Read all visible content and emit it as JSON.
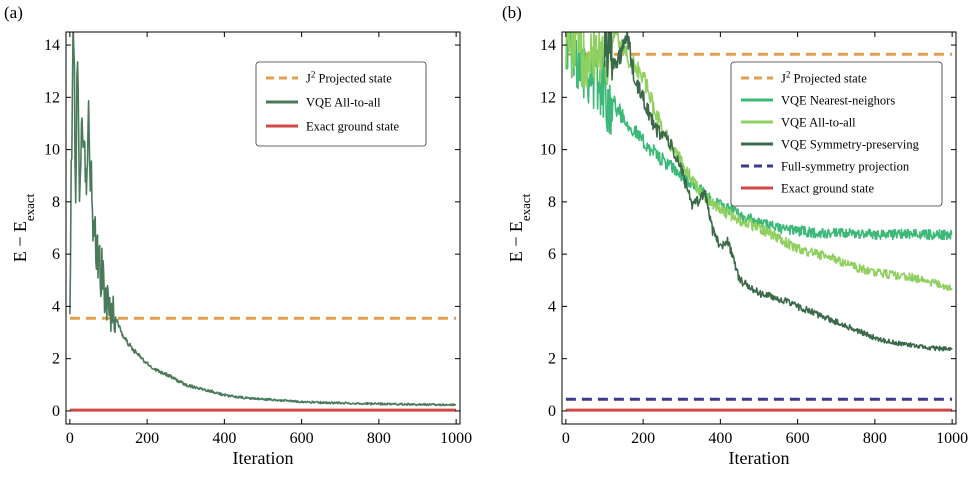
{
  "chart_data": [
    {
      "panel": "(a)",
      "type": "line",
      "title": "",
      "xlabel": "Iteration",
      "ylabel": "E − E",
      "ylabel_sub": "exact",
      "xlim": [
        -10,
        1010
      ],
      "ylim": [
        -0.5,
        14.5
      ],
      "xticks": [
        "0",
        "200",
        "400",
        "600",
        "800",
        "1000"
      ],
      "yticks": [
        "0",
        "2",
        "4",
        "6",
        "8",
        "10",
        "12",
        "14"
      ],
      "legend_position": "top-right",
      "series": [
        {
          "name": "J² Projected state",
          "legend_sup": "2",
          "legend_rest": " Projected state",
          "color": "#e0a050",
          "style": "dashed",
          "x": [
            0,
            1000
          ],
          "y": [
            3.55,
            3.55
          ]
        },
        {
          "name": "VQE All-to-all",
          "color": "#4a7a5a",
          "style": "solid",
          "noisy": true,
          "x": [
            0,
            5,
            10,
            15,
            20,
            25,
            30,
            40,
            50,
            60,
            70,
            80,
            90,
            100,
            120,
            140,
            160,
            180,
            200,
            220,
            250,
            280,
            300,
            340,
            380,
            400,
            450,
            500,
            550,
            600,
            650,
            700,
            800,
            900,
            1000
          ],
          "y": [
            3.5,
            11.0,
            14.5,
            9.0,
            13.0,
            7.0,
            12.5,
            9.0,
            11.0,
            6.5,
            6.0,
            5.5,
            4.5,
            4.0,
            3.5,
            2.8,
            2.4,
            2.1,
            1.8,
            1.6,
            1.4,
            1.15,
            1.0,
            0.85,
            0.7,
            0.6,
            0.5,
            0.45,
            0.4,
            0.35,
            0.32,
            0.3,
            0.27,
            0.25,
            0.23
          ]
        },
        {
          "name": "Exact ground state",
          "color": "#d04848",
          "style": "solid",
          "x": [
            0,
            1000
          ],
          "y": [
            0.03,
            0.03
          ]
        }
      ]
    },
    {
      "panel": "(b)",
      "type": "line",
      "title": "",
      "xlabel": "Iteration",
      "ylabel": "E − E",
      "ylabel_sub": "exact",
      "xlim": [
        -10,
        1010
      ],
      "ylim": [
        -0.5,
        14.5
      ],
      "xticks": [
        "0",
        "200",
        "400",
        "600",
        "800",
        "1000"
      ],
      "yticks": [
        "0",
        "2",
        "4",
        "6",
        "8",
        "10",
        "12",
        "14"
      ],
      "legend_position": "top-right",
      "series": [
        {
          "name": "J² Projected state",
          "legend_sup": "2",
          "legend_rest": " Projected state",
          "color": "#e0a050",
          "style": "dashed",
          "x": [
            0,
            1000
          ],
          "y": [
            13.65,
            13.65
          ]
        },
        {
          "name": "VQE Nearest-neighors",
          "color": "#3cb878",
          "style": "solid",
          "noisy": true,
          "x": [
            0,
            30,
            60,
            100,
            150,
            200,
            250,
            300,
            350,
            400,
            450,
            500,
            550,
            600,
            650,
            700,
            800,
            900,
            1000
          ],
          "y": [
            14.5,
            13.8,
            13.2,
            12.3,
            11.2,
            10.3,
            9.6,
            9.0,
            8.4,
            7.9,
            7.5,
            7.2,
            7.0,
            6.9,
            6.8,
            6.78,
            6.77,
            6.76,
            6.75
          ]
        },
        {
          "name": "VQE All-to-all",
          "color": "#90d060",
          "style": "solid",
          "noisy": true,
          "x": [
            0,
            40,
            80,
            100,
            130,
            160,
            200,
            230,
            260,
            300,
            350,
            400,
            450,
            500,
            550,
            600,
            650,
            700,
            750,
            800,
            850,
            900,
            950,
            1000
          ],
          "y": [
            14.5,
            13.7,
            14.2,
            13.6,
            14.5,
            13.5,
            12.8,
            11.5,
            10.5,
            9.5,
            8.3,
            7.7,
            7.3,
            7.0,
            6.6,
            6.2,
            6.0,
            5.8,
            5.5,
            5.3,
            5.2,
            5.1,
            4.9,
            4.7
          ]
        },
        {
          "name": "VQE Symmetry-preserving",
          "color": "#3a6a4a",
          "style": "solid",
          "noisy": true,
          "x": [
            100,
            130,
            160,
            180,
            200,
            230,
            260,
            300,
            330,
            360,
            380,
            400,
            420,
            450,
            500,
            550,
            600,
            650,
            700,
            750,
            800,
            850,
            900,
            950,
            1000
          ],
          "y": [
            14.5,
            13.2,
            14.3,
            12.5,
            12.0,
            10.8,
            10.5,
            9.2,
            7.8,
            8.4,
            6.9,
            6.3,
            6.5,
            5.0,
            4.5,
            4.3,
            4.0,
            3.7,
            3.4,
            3.1,
            2.8,
            2.6,
            2.5,
            2.4,
            2.35
          ]
        },
        {
          "name": "Full-symmetry projection",
          "color": "#3a3a8c",
          "style": "dashed",
          "x": [
            0,
            1000
          ],
          "y": [
            0.45,
            0.45
          ]
        },
        {
          "name": "Exact ground state",
          "color": "#d04848",
          "style": "solid",
          "x": [
            0,
            1000
          ],
          "y": [
            0.03,
            0.03
          ]
        }
      ]
    }
  ]
}
